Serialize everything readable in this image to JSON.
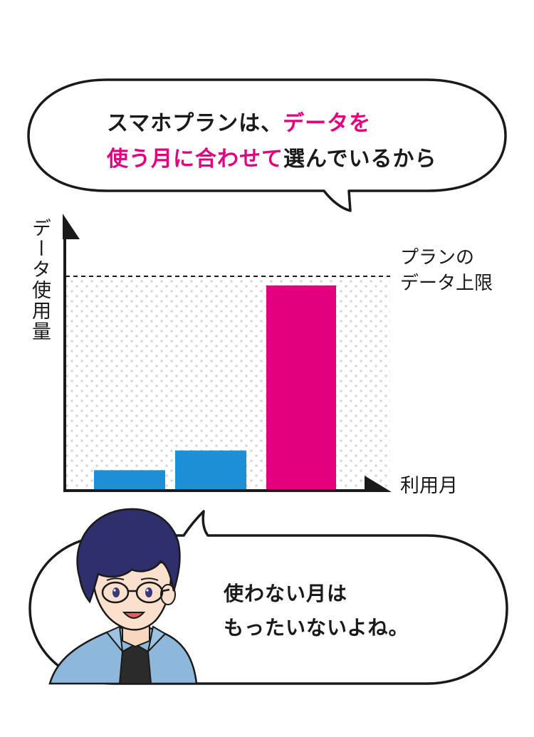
{
  "top_bubble": {
    "line1_plain": "スマホプランは、",
    "line1_accent": "データを",
    "line2_accent": "使う月に合わせて",
    "line2_plain": "選んでいるから"
  },
  "chart": {
    "y_axis_label": "データ使用量",
    "x_axis_label": "利用月",
    "limit_label_line1": "プランの",
    "limit_label_line2": "データ上限"
  },
  "chart_data": {
    "type": "bar",
    "ylabel": "データ使用量",
    "xlabel": "利用月",
    "values": [
      0.08,
      0.16,
      0.83
    ],
    "limit": 0.83,
    "bar_colors": [
      "#1c8fd6",
      "#1c8fd6",
      "#e2007f"
    ]
  },
  "bottom_bubble": {
    "line1": "使わない月は",
    "line2": "もったいないよね。"
  },
  "colors": {
    "accent": "#e2007f",
    "blue_bar": "#1c8fd6",
    "outline": "#1a1a1a"
  },
  "icons": {
    "character": "man-with-glasses-avatar"
  }
}
